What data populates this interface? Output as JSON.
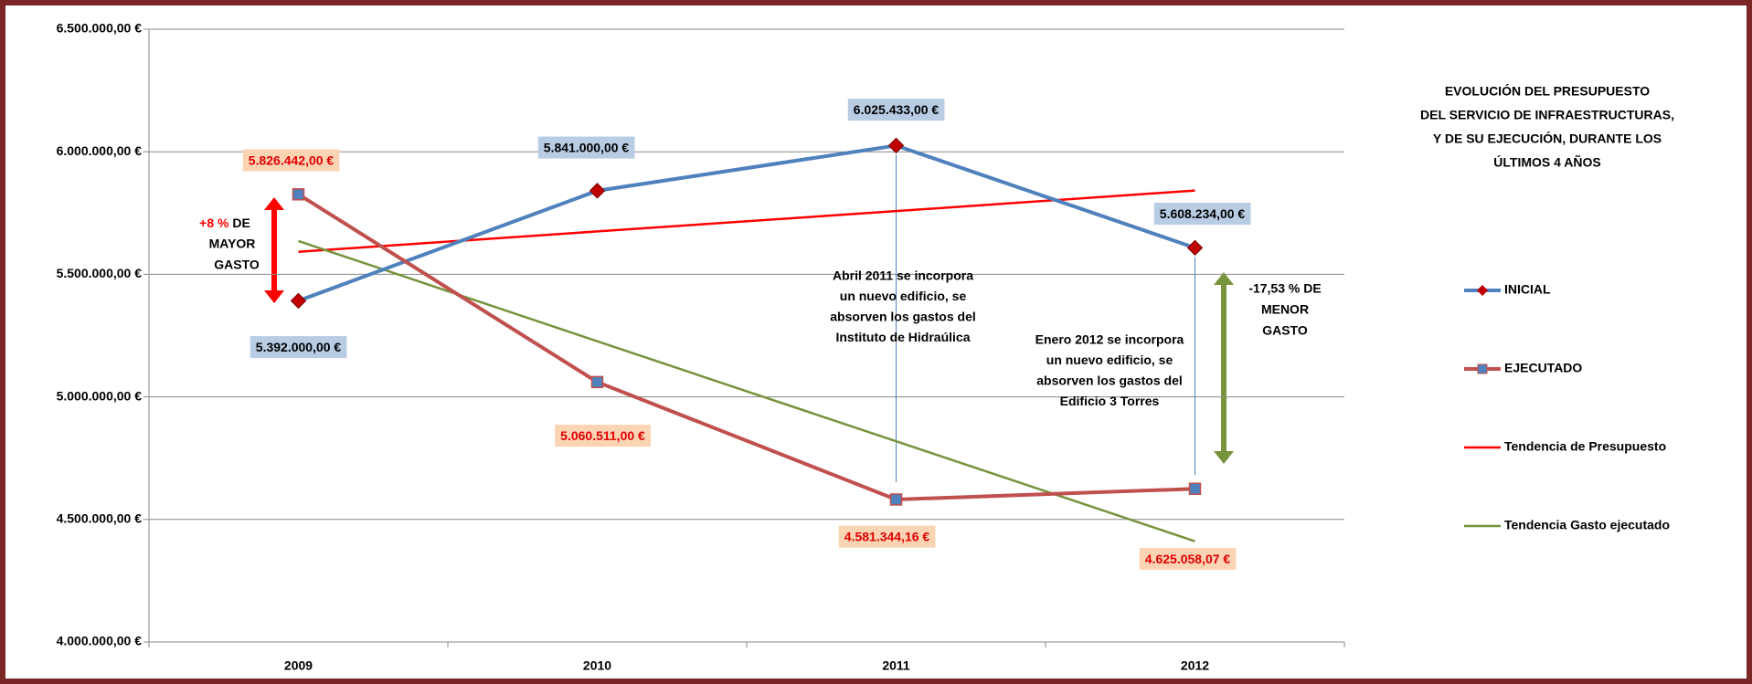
{
  "chart_data": {
    "type": "line",
    "title": [
      "EVOLUCIÓN DEL PRESUPUESTO",
      "DEL SERVICIO DE INFRAESTRUCTURAS,",
      "Y  DE SU EJECUCIÓN, DURANTE LOS",
      "ÚLTIMOS 4 AÑOS"
    ],
    "categories": [
      "2009",
      "2010",
      "2011",
      "2012"
    ],
    "series": [
      {
        "name": "INICIAL",
        "color": "#4f81bd",
        "marker": "diamond",
        "marker_color": "#c00000",
        "label_box": "#b8cce4",
        "label_color": "#000000",
        "values": [
          5392000,
          5841000,
          6025433,
          5608234
        ],
        "value_labels": [
          "5.392.000,00 €",
          "5.841.000,00 €",
          "6.025.433,00 €",
          "5.608.234,00 €"
        ]
      },
      {
        "name": "EJECUTADO",
        "color": "#c0504d",
        "marker": "square",
        "marker_color": "#4f81bd",
        "label_box": "#fbd4b4",
        "label_color": "#e00000",
        "values": [
          5826442,
          5060511,
          4581344.16,
          4625058.07
        ],
        "value_labels": [
          "5.826.442,00 €",
          "5.060.511,00 €",
          "4.581.344,16 €",
          "4.625.058,07 €"
        ]
      },
      {
        "name": "Tendencia de Presupuesto",
        "color": "#ff0000",
        "values": [
          5592000,
          5675000,
          5758000,
          5842000
        ]
      },
      {
        "name": "Tendencia Gasto ejecutado",
        "color": "#77933c",
        "values": [
          5636000,
          5227000,
          4819000,
          4411000
        ]
      }
    ],
    "ylim": [
      4000000,
      6500000
    ],
    "yticks": [
      {
        "value": 4000000,
        "label": "4.000.000,00 €"
      },
      {
        "value": 4500000,
        "label": "4.500.000,00 €"
      },
      {
        "value": 5000000,
        "label": "5.000.000,00 €"
      },
      {
        "value": 5500000,
        "label": "5.500.000,00 €"
      },
      {
        "value": 6000000,
        "label": "6.000.000,00 €"
      },
      {
        "value": 6500000,
        "label": "6.500.000,00 €"
      }
    ],
    "grid": true,
    "legend": "right",
    "annotations": {
      "increase": [
        "+8 %",
        "DE",
        "MAYOR",
        "GASTO"
      ],
      "decrease": [
        "-17,53 % DE",
        "MENOR",
        "GASTO"
      ],
      "notes": [
        [
          "Abril 2011 se incorpora",
          "un nuevo edificio, se",
          "absorven los gastos del",
          "Instituto de  Hidraúlica"
        ],
        [
          "Enero 2012 se incorpora",
          "un nuevo edificio, se",
          "absorven los gastos del",
          "Edificio 3 Torres"
        ]
      ]
    }
  }
}
